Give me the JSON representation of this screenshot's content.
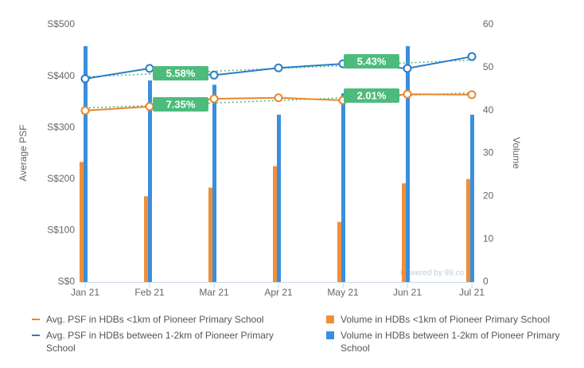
{
  "chart_data": {
    "type": "combo",
    "y_label": "Average PSF",
    "y2_label": "Volume",
    "categories": [
      "Jan 21",
      "Feb 21",
      "Mar 21",
      "Apr 21",
      "May 21",
      "Jun 21",
      "Jul 21"
    ],
    "ylim": [
      0,
      500
    ],
    "yticks": [
      {
        "value": 0,
        "label": "S$0"
      },
      {
        "value": 100,
        "label": "S$100"
      },
      {
        "value": 200,
        "label": "S$200"
      },
      {
        "value": 300,
        "label": "S$300"
      },
      {
        "value": 400,
        "label": "S$400"
      },
      {
        "value": 500,
        "label": "S$500"
      }
    ],
    "y2lim": [
      0,
      60
    ],
    "y2ticks": [
      0,
      10,
      20,
      30,
      40,
      50,
      60
    ],
    "series": [
      {
        "name": "Avg. PSF in HDBs <1km of Pioneer Primary School",
        "type": "line",
        "color": "#e8872f",
        "values": [
          333,
          341,
          356,
          358,
          353,
          365,
          364
        ]
      },
      {
        "name": "Volume in HDBs <1km of Pioneer Primary School",
        "type": "bar",
        "axis": "y2",
        "color": "#ef8f3a",
        "values": [
          28,
          20,
          22,
          27,
          14,
          23,
          24
        ]
      },
      {
        "name": "Avg. PSF in HDBs between 1-2km of Pioneer Primary School",
        "type": "line",
        "color": "#2a7dc6",
        "values": [
          395,
          415,
          402,
          416,
          424,
          415,
          438
        ]
      },
      {
        "name": "Volume in HDBs between 1-2km of Pioneer Primary School",
        "type": "bar",
        "axis": "y2",
        "color": "#3a8fdc",
        "values": [
          55,
          47,
          46,
          39,
          44,
          55,
          39
        ]
      }
    ],
    "annotations": [
      "5.58%",
      "7.35%",
      "5.43%",
      "2.01%"
    ],
    "trendline_color": "#4cbb7c",
    "watermark": "Powered by 99.co"
  }
}
